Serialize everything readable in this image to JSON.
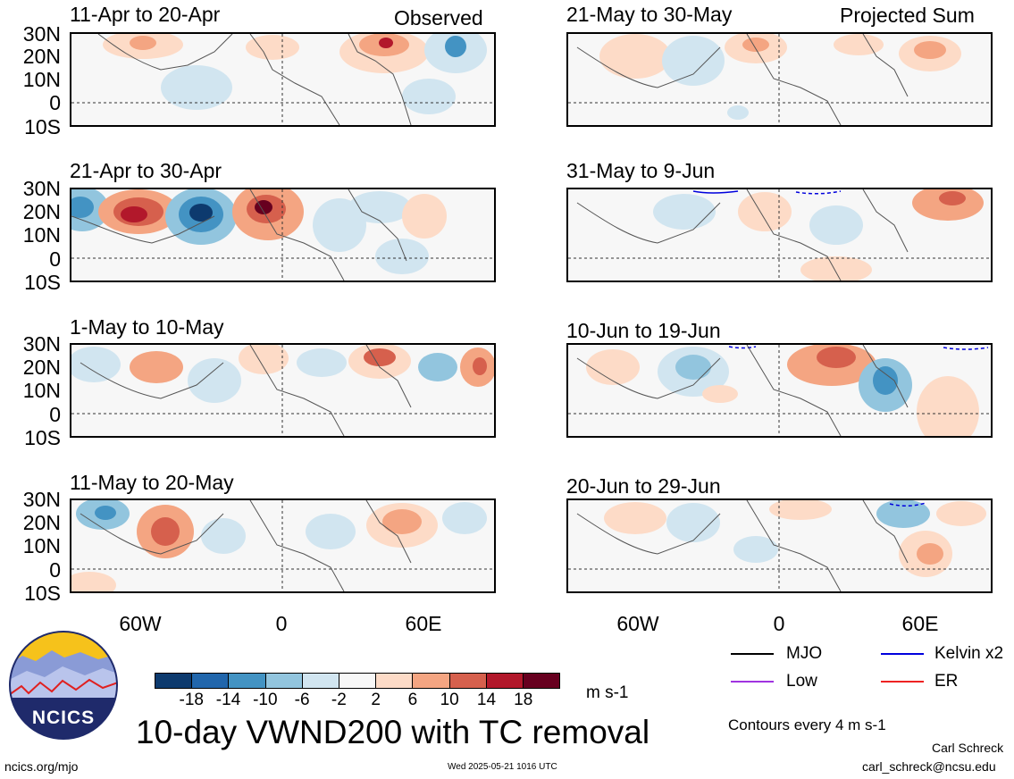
{
  "header": {
    "observed_label": "Observed",
    "projected_label": "Projected Sum"
  },
  "panels_left": [
    {
      "period": "11-Apr to 20-Apr"
    },
    {
      "period": "21-Apr to 30-Apr"
    },
    {
      "period": "1-May to 10-May"
    },
    {
      "period": "11-May to 20-May"
    }
  ],
  "panels_right": [
    {
      "period": "21-May to 30-May"
    },
    {
      "period": "31-May to 9-Jun"
    },
    {
      "period": "10-Jun to 19-Jun"
    },
    {
      "period": "20-Jun to 29-Jun"
    }
  ],
  "lat_labels": [
    "30N",
    "20N",
    "10N",
    "0",
    "10S"
  ],
  "lon_labels": [
    "60W",
    "0",
    "60E"
  ],
  "colorbar": {
    "colors": [
      "#0d3a6e",
      "#2166ac",
      "#4393c3",
      "#92c5de",
      "#d1e5f0",
      "#f7f7f7",
      "#fddbc7",
      "#f4a582",
      "#d6604d",
      "#b2182b",
      "#67001f"
    ],
    "ticks": [
      "-18",
      "-14",
      "-10",
      "-6",
      "-2",
      "2",
      "6",
      "10",
      "14",
      "18"
    ],
    "units": "m s-1"
  },
  "legend": {
    "items": [
      {
        "label": "MJO",
        "color": "#000000"
      },
      {
        "label": "Kelvin x2",
        "color": "#0000dd"
      },
      {
        "label": "Low",
        "color": "#a033e0"
      },
      {
        "label": "ER",
        "color": "#ee2222"
      }
    ],
    "contours_note": "Contours every 4 m s-1"
  },
  "logo": {
    "text": "NCICS"
  },
  "title": "10-day VWND200 with TC removal",
  "footer": {
    "url": "ncics.org/mjo",
    "timestamp": "Wed 2025-05-21 1016 UTC",
    "author": "Carl Schreck",
    "email": "carl_schreck@ncsu.edu"
  }
}
